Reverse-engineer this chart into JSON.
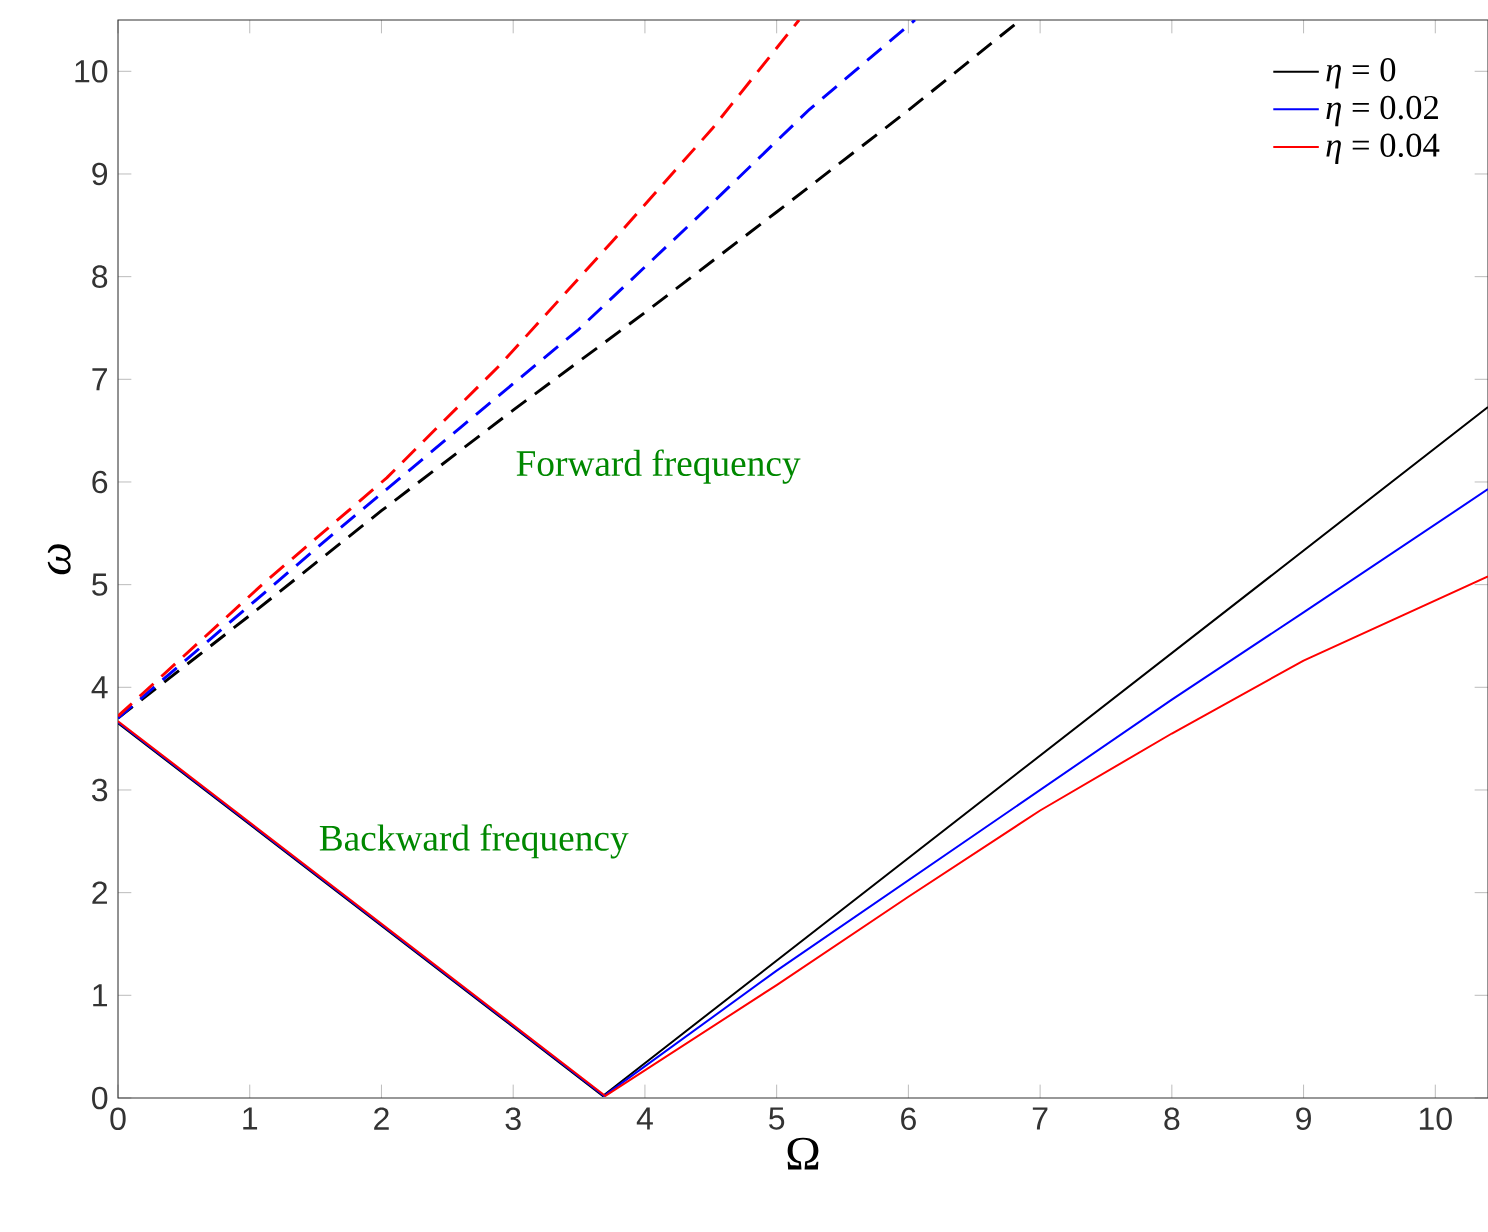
{
  "chart_data": {
    "type": "line",
    "xlabel": "Ω",
    "ylabel": "*ω*",
    "xlim": [
      0,
      10.4
    ],
    "ylim": [
      0,
      10.5
    ],
    "xticks": [
      0,
      1,
      2,
      3,
      4,
      5,
      6,
      7,
      8,
      9,
      10
    ],
    "yticks": [
      0,
      1,
      2,
      3,
      4,
      5,
      6,
      7,
      8,
      9,
      10
    ],
    "legend": "top right",
    "annotations": [
      "Forward frequency",
      "Backward frequency"
    ],
    "series": [
      {
        "name": "*η* = 0",
        "color": "#000000",
        "line_style": "solid",
        "x": [
          0,
          3.68,
          10.4
        ],
        "values": [
          3.65,
          0.02,
          6.73
        ]
      },
      {
        "name": "*η* = 0.02",
        "color": "#0000ff",
        "line_style": "solid",
        "x": [
          0,
          3.69,
          5,
          6,
          7,
          8,
          9,
          10.4
        ],
        "values": [
          3.66,
          0.02,
          1.24,
          2.12,
          3.0,
          3.88,
          4.73,
          5.93
        ]
      },
      {
        "name": "*η* = 0.04",
        "color": "#ff0000",
        "line_style": "solid",
        "x": [
          0,
          3.7,
          5,
          6,
          7,
          8,
          9,
          10.4
        ],
        "values": [
          3.67,
          0.02,
          1.1,
          1.96,
          2.8,
          3.55,
          4.26,
          5.08
        ]
      },
      {
        "color": "#000000",
        "line_style": "dashed",
        "x": [
          0,
          1,
          2,
          3,
          4,
          5,
          6,
          6.85
        ],
        "values": [
          3.7,
          4.7,
          5.72,
          6.7,
          7.65,
          8.63,
          9.62,
          10.5
        ]
      },
      {
        "color": "#0000ff",
        "line_style": "dashed",
        "x": [
          0,
          1.63,
          2.59,
          3.5,
          4.36,
          5.25,
          6.05
        ],
        "values": [
          3.7,
          5.49,
          6.52,
          7.49,
          8.53,
          9.63,
          10.5
        ]
      },
      {
        "color": "#ff0000",
        "line_style": "dashed",
        "x": [
          0,
          1.12,
          2.04,
          2.9,
          3.75,
          4.51,
          5.17
        ],
        "values": [
          3.72,
          5.03,
          6.04,
          7.14,
          8.34,
          9.44,
          10.5
        ]
      }
    ]
  }
}
